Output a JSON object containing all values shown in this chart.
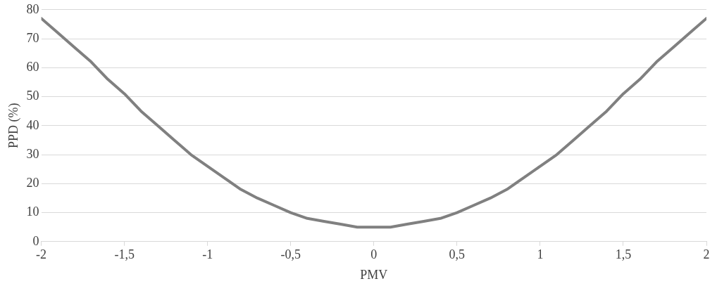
{
  "chart_data": {
    "type": "line",
    "xlabel": "PMV",
    "ylabel": "PPD (%)",
    "x": [
      -2,
      -1.9,
      -1.8,
      -1.7,
      -1.6,
      -1.5,
      -1.4,
      -1.3,
      -1.2,
      -1.1,
      -1,
      -0.9,
      -0.8,
      -0.7,
      -0.6,
      -0.5,
      -0.4,
      -0.3,
      -0.2,
      -0.1,
      0,
      0.1,
      0.2,
      0.3,
      0.4,
      0.5,
      0.6,
      0.7,
      0.8,
      0.9,
      1,
      1.1,
      1.2,
      1.3,
      1.4,
      1.5,
      1.6,
      1.7,
      1.8,
      1.9,
      2
    ],
    "series": [
      {
        "color": "#808080",
        "values": [
          77,
          72,
          67,
          62,
          56,
          51,
          45,
          40,
          35,
          30,
          26,
          22,
          18,
          15,
          12.5,
          10,
          8,
          7,
          6,
          5,
          5,
          5,
          6,
          7,
          8,
          10,
          12.5,
          15,
          18,
          22,
          26,
          30,
          35,
          40,
          45,
          51,
          56,
          62,
          67,
          72,
          77
        ]
      }
    ],
    "xlim": [
      -2,
      2
    ],
    "xticks": [
      {
        "value": -2,
        "label": "-2"
      },
      {
        "value": -1.5,
        "label": "-1,5"
      },
      {
        "value": -1,
        "label": "-1"
      },
      {
        "value": -0.5,
        "label": "-0,5"
      },
      {
        "value": 0,
        "label": "0"
      },
      {
        "value": 0.5,
        "label": "0,5"
      },
      {
        "value": 1,
        "label": "1"
      },
      {
        "value": 1.5,
        "label": "1,5"
      },
      {
        "value": 2,
        "label": "2"
      }
    ],
    "ylim": [
      0,
      80
    ],
    "yticks": [
      0,
      10,
      20,
      30,
      40,
      50,
      60,
      70,
      80
    ],
    "grid": "y",
    "legend": false,
    "marker": "none",
    "line_style": "solid"
  }
}
